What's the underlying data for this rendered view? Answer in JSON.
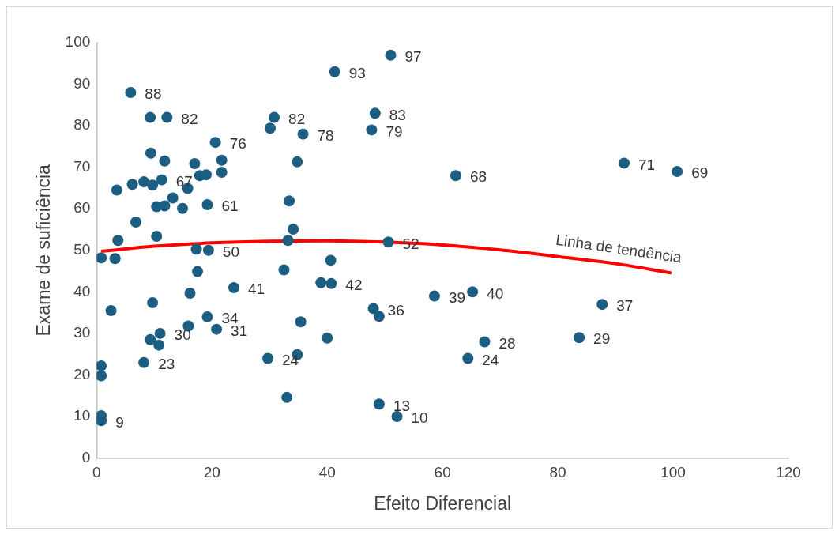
{
  "chart_data": {
    "type": "scatter",
    "xlabel": "Efeito Diferencial",
    "ylabel": "Exame de suficiência",
    "xlim": [
      0,
      120
    ],
    "xticks": [
      0,
      20,
      40,
      60,
      80,
      100,
      120
    ],
    "ylim": [
      0,
      100
    ],
    "yticks": [
      0,
      10,
      20,
      30,
      40,
      50,
      60,
      70,
      80,
      90,
      100
    ],
    "grid": false,
    "legend": false,
    "series": [
      {
        "type": "scatter",
        "marker": "circle",
        "color": "#1b5e82",
        "x": [
          5.9,
          12.2,
          20.6,
          11.3,
          19.2,
          19.4,
          23.8,
          19.2,
          20.8,
          11,
          8.2,
          0.8,
          30.8,
          35.8,
          41.3,
          51,
          48.3,
          47.7,
          50.6,
          40.7,
          48,
          29.7,
          49,
          52.1,
          62.3,
          91.5,
          100.7,
          58.6,
          65.2,
          87.7,
          83.7,
          67.3,
          64.4,
          9.3,
          9.4,
          11.8,
          17,
          21.7,
          21.7,
          17.9,
          19,
          3.5,
          6.2,
          8.2,
          9.7,
          15.8,
          13.2,
          10.4,
          11.8,
          14.9,
          6.8,
          3.7,
          10.4,
          0.8,
          3.2,
          17.3,
          17.5,
          16.2,
          9.7,
          2.5,
          15.9,
          9.3,
          10.8,
          0.8,
          0.8,
          0.8,
          30.1,
          34.8,
          33.4,
          34.1,
          33.2,
          40.6,
          32.5,
          38.9,
          49,
          35.4,
          40,
          34.8,
          33
        ],
        "values": [
          88,
          82,
          76,
          67,
          61,
          50,
          41,
          34,
          31,
          30,
          23,
          9,
          82,
          78,
          93,
          97,
          83,
          79,
          52,
          42,
          36,
          24,
          13,
          10,
          68,
          71,
          69,
          39,
          40,
          37,
          29,
          28,
          24,
          82,
          73.4,
          71.5,
          70.9,
          71.7,
          68.8,
          68,
          68.2,
          64.5,
          65.9,
          66.5,
          65.7,
          64.9,
          62.6,
          60.5,
          60.7,
          60.1,
          56.8,
          52.4,
          53.4,
          48.2,
          48,
          50.3,
          44.9,
          39.7,
          37.4,
          35.5,
          31.8,
          28.5,
          27.2,
          22.2,
          19.8,
          10.2,
          79.4,
          71.3,
          61.9,
          55.1,
          52.4,
          47.6,
          45.3,
          42.2,
          34.1,
          32.8,
          28.9,
          24.9,
          14.6
        ],
        "value_labels": [
          "88",
          "82",
          "76",
          "67",
          "61",
          "50",
          "41",
          "34",
          "31",
          "30",
          "23",
          "9",
          "82",
          "78",
          "93",
          "97",
          "83",
          "79",
          "52",
          "42",
          "36",
          "24",
          "13",
          "10",
          "68",
          "71",
          "69",
          "39",
          "40",
          "37",
          "29",
          "28",
          "24",
          null,
          null,
          null,
          null,
          null,
          null,
          null,
          null,
          null,
          null,
          null,
          null,
          null,
          null,
          null,
          null,
          null,
          null,
          null,
          null,
          null,
          null,
          null,
          null,
          null,
          null,
          null,
          null,
          null,
          null,
          null,
          null,
          null,
          null,
          null,
          null,
          null,
          null,
          null,
          null,
          null,
          null,
          null,
          null,
          null,
          null
        ]
      },
      {
        "type": "line",
        "name": "Linha de tendência",
        "marker": "none",
        "line_style": "solid",
        "color": "#ff0000",
        "x": [
          1,
          10,
          20,
          30,
          40,
          50,
          60,
          70,
          80,
          90,
          99.5
        ],
        "values": [
          49.8,
          51,
          51.8,
          52.2,
          52.3,
          52,
          51.3,
          50.1,
          48.5,
          46.8,
          44.6
        ]
      }
    ]
  }
}
